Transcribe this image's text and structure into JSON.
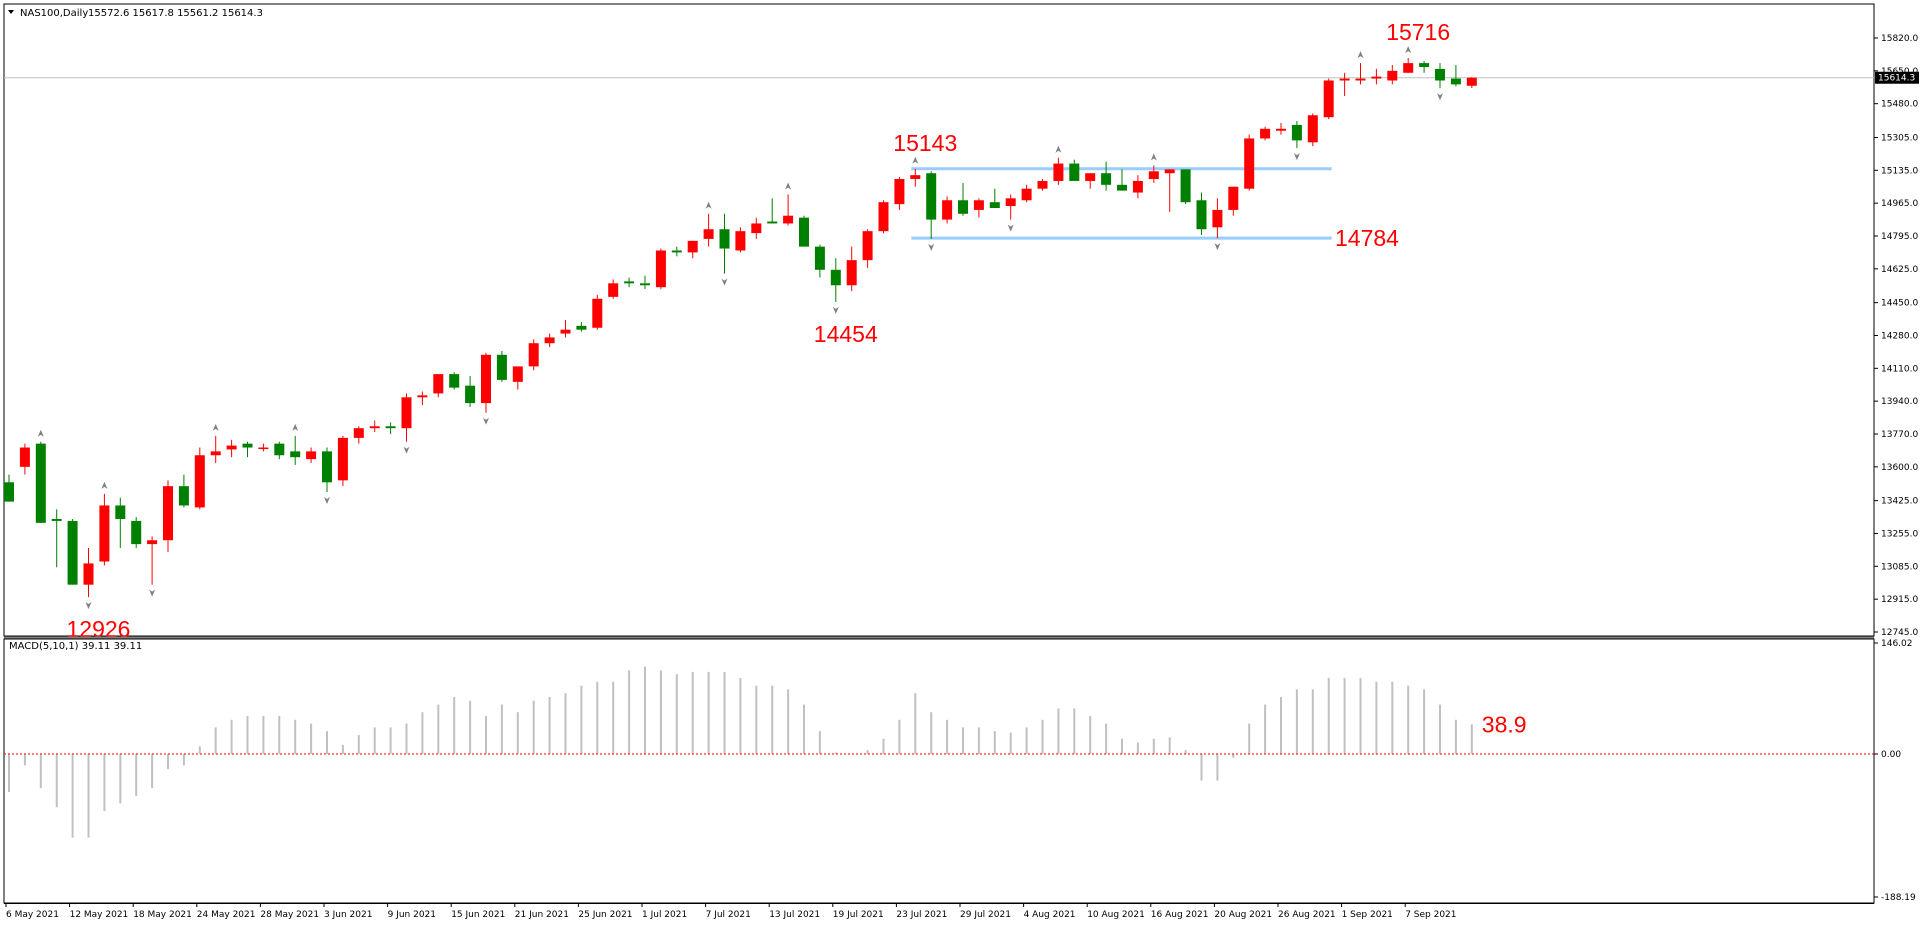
{
  "header": {
    "symbol": "NAS100,Daily",
    "ohlc": "15572.6 15617.8 15561.2 15614.3"
  },
  "colors": {
    "up": "#ff0000",
    "down": "#008000",
    "wick": "#000000",
    "support_resistance": "#99ccff",
    "annotation": "#ff0000",
    "macd_bar": "#c0c0c0",
    "signal": "#ff0000",
    "current_price_line": "#c0c0c0",
    "fractal_marker": "#808080"
  },
  "chart_data": [
    {
      "type": "candlestick",
      "title": "NAS100,Daily",
      "ylim": [
        12745.0,
        15820.0
      ],
      "y_ticks": [
        "15820.0",
        "15650.0",
        "15480.0",
        "15305.0",
        "15135.0",
        "14965.0",
        "14795.0",
        "14625.0",
        "14450.0",
        "14280.0",
        "14110.0",
        "13940.0",
        "13770.0",
        "13600.0",
        "13425.0",
        "13255.0",
        "13085.0",
        "12915.0",
        "12745.0"
      ],
      "current_price": "15614.3",
      "x_date_labels": [
        "6 May 2021",
        "12 May 2021",
        "18 May 2021",
        "24 May 2021",
        "28 May 2021",
        "3 Jun 2021",
        "9 Jun 2021",
        "15 Jun 2021",
        "21 Jun 2021",
        "25 Jun 2021",
        "1 Jul 2021",
        "7 Jul 2021",
        "13 Jul 2021",
        "19 Jul 2021",
        "23 Jul 2021",
        "29 Jul 2021",
        "4 Aug 2021",
        "10 Aug 2021",
        "16 Aug 2021",
        "20 Aug 2021",
        "26 Aug 2021",
        "1 Sep 2021",
        "7 Sep 2021"
      ],
      "candles": [
        {
          "o": 13520,
          "h": 13560,
          "l": 13420,
          "c": 13420
        },
        {
          "o": 13600,
          "h": 13720,
          "l": 13560,
          "c": 13700
        },
        {
          "o": 13720,
          "h": 13730,
          "l": 13310,
          "c": 13310
        },
        {
          "o": 13330,
          "h": 13380,
          "l": 13080,
          "c": 13320
        },
        {
          "o": 13320,
          "h": 13330,
          "l": 12990,
          "c": 12990
        },
        {
          "o": 12990,
          "h": 13180,
          "l": 12926,
          "c": 13100
        },
        {
          "o": 13110,
          "h": 13460,
          "l": 13090,
          "c": 13400
        },
        {
          "o": 13400,
          "h": 13440,
          "l": 13180,
          "c": 13330
        },
        {
          "o": 13320,
          "h": 13340,
          "l": 13180,
          "c": 13200
        },
        {
          "o": 13200,
          "h": 13240,
          "l": 12990,
          "c": 13220
        },
        {
          "o": 13220,
          "h": 13530,
          "l": 13160,
          "c": 13500
        },
        {
          "o": 13500,
          "h": 13560,
          "l": 13390,
          "c": 13400
        },
        {
          "o": 13390,
          "h": 13700,
          "l": 13380,
          "c": 13660
        },
        {
          "o": 13660,
          "h": 13760,
          "l": 13620,
          "c": 13680
        },
        {
          "o": 13690,
          "h": 13740,
          "l": 13650,
          "c": 13710
        },
        {
          "o": 13720,
          "h": 13730,
          "l": 13650,
          "c": 13700
        },
        {
          "o": 13700,
          "h": 13720,
          "l": 13680,
          "c": 13700
        },
        {
          "o": 13720,
          "h": 13730,
          "l": 13640,
          "c": 13660
        },
        {
          "o": 13680,
          "h": 13760,
          "l": 13610,
          "c": 13650
        },
        {
          "o": 13640,
          "h": 13700,
          "l": 13620,
          "c": 13680
        },
        {
          "o": 13680,
          "h": 13700,
          "l": 13470,
          "c": 13520
        },
        {
          "o": 13530,
          "h": 13760,
          "l": 13500,
          "c": 13750
        },
        {
          "o": 13750,
          "h": 13810,
          "l": 13720,
          "c": 13800
        },
        {
          "o": 13800,
          "h": 13840,
          "l": 13780,
          "c": 13810
        },
        {
          "o": 13810,
          "h": 13830,
          "l": 13770,
          "c": 13800
        },
        {
          "o": 13800,
          "h": 13980,
          "l": 13730,
          "c": 13960
        },
        {
          "o": 13960,
          "h": 13990,
          "l": 13920,
          "c": 13970
        },
        {
          "o": 13980,
          "h": 14080,
          "l": 13960,
          "c": 14080
        },
        {
          "o": 14080,
          "h": 14090,
          "l": 14000,
          "c": 14010
        },
        {
          "o": 14020,
          "h": 14070,
          "l": 13910,
          "c": 13930
        },
        {
          "o": 13930,
          "h": 14190,
          "l": 13880,
          "c": 14180
        },
        {
          "o": 14180,
          "h": 14200,
          "l": 14040,
          "c": 14050
        },
        {
          "o": 14040,
          "h": 14110,
          "l": 14000,
          "c": 14120
        },
        {
          "o": 14120,
          "h": 14260,
          "l": 14100,
          "c": 14240
        },
        {
          "o": 14240,
          "h": 14290,
          "l": 14220,
          "c": 14270
        },
        {
          "o": 14290,
          "h": 14360,
          "l": 14270,
          "c": 14310
        },
        {
          "o": 14330,
          "h": 14350,
          "l": 14300,
          "c": 14310
        },
        {
          "o": 14320,
          "h": 14490,
          "l": 14310,
          "c": 14470
        },
        {
          "o": 14480,
          "h": 14570,
          "l": 14470,
          "c": 14550
        },
        {
          "o": 14560,
          "h": 14580,
          "l": 14530,
          "c": 14550
        },
        {
          "o": 14550,
          "h": 14590,
          "l": 14520,
          "c": 14540
        },
        {
          "o": 14530,
          "h": 14730,
          "l": 14520,
          "c": 14720
        },
        {
          "o": 14720,
          "h": 14740,
          "l": 14690,
          "c": 14710
        },
        {
          "o": 14710,
          "h": 14770,
          "l": 14680,
          "c": 14770
        },
        {
          "o": 14780,
          "h": 14910,
          "l": 14740,
          "c": 14830
        },
        {
          "o": 14830,
          "h": 14910,
          "l": 14600,
          "c": 14730
        },
        {
          "o": 14720,
          "h": 14840,
          "l": 14710,
          "c": 14820
        },
        {
          "o": 14810,
          "h": 14890,
          "l": 14780,
          "c": 14860
        },
        {
          "o": 14870,
          "h": 14990,
          "l": 14860,
          "c": 14860
        },
        {
          "o": 14860,
          "h": 15010,
          "l": 14850,
          "c": 14900
        },
        {
          "o": 14890,
          "h": 14900,
          "l": 14740,
          "c": 14740
        },
        {
          "o": 14740,
          "h": 14750,
          "l": 14580,
          "c": 14620
        },
        {
          "o": 14620,
          "h": 14680,
          "l": 14454,
          "c": 14540
        },
        {
          "o": 14540,
          "h": 14740,
          "l": 14510,
          "c": 14670
        },
        {
          "o": 14670,
          "h": 14830,
          "l": 14630,
          "c": 14820
        },
        {
          "o": 14820,
          "h": 14980,
          "l": 14810,
          "c": 14970
        },
        {
          "o": 14960,
          "h": 15100,
          "l": 14930,
          "c": 15090
        },
        {
          "o": 15090,
          "h": 15143,
          "l": 15050,
          "c": 15110
        },
        {
          "o": 15120,
          "h": 15130,
          "l": 14780,
          "c": 14880
        },
        {
          "o": 14880,
          "h": 15000,
          "l": 14860,
          "c": 14980
        },
        {
          "o": 14980,
          "h": 15070,
          "l": 14900,
          "c": 14910
        },
        {
          "o": 14930,
          "h": 14990,
          "l": 14890,
          "c": 14980
        },
        {
          "o": 14970,
          "h": 15040,
          "l": 14940,
          "c": 14940
        },
        {
          "o": 14950,
          "h": 15010,
          "l": 14880,
          "c": 14990
        },
        {
          "o": 14980,
          "h": 15060,
          "l": 14970,
          "c": 15040
        },
        {
          "o": 15040,
          "h": 15090,
          "l": 15030,
          "c": 15080
        },
        {
          "o": 15080,
          "h": 15200,
          "l": 15060,
          "c": 15170
        },
        {
          "o": 15170,
          "h": 15190,
          "l": 15090,
          "c": 15080
        },
        {
          "o": 15080,
          "h": 15120,
          "l": 15040,
          "c": 15120
        },
        {
          "o": 15120,
          "h": 15180,
          "l": 15030,
          "c": 15060
        },
        {
          "o": 15060,
          "h": 15140,
          "l": 15030,
          "c": 15030
        },
        {
          "o": 15020,
          "h": 15110,
          "l": 14990,
          "c": 15080
        },
        {
          "o": 15090,
          "h": 15160,
          "l": 15070,
          "c": 15130
        },
        {
          "o": 15120,
          "h": 15140,
          "l": 14920,
          "c": 15140
        },
        {
          "o": 15140,
          "h": 15140,
          "l": 14960,
          "c": 14970
        },
        {
          "o": 14980,
          "h": 15020,
          "l": 14800,
          "c": 14830
        },
        {
          "o": 14840,
          "h": 14990,
          "l": 14784,
          "c": 14930
        },
        {
          "o": 14930,
          "h": 15050,
          "l": 14900,
          "c": 15050
        },
        {
          "o": 15040,
          "h": 15320,
          "l": 15030,
          "c": 15300
        },
        {
          "o": 15300,
          "h": 15360,
          "l": 15290,
          "c": 15350
        },
        {
          "o": 15340,
          "h": 15380,
          "l": 15320,
          "c": 15350
        },
        {
          "o": 15370,
          "h": 15390,
          "l": 15250,
          "c": 15290
        },
        {
          "o": 15280,
          "h": 15430,
          "l": 15260,
          "c": 15420
        },
        {
          "o": 15410,
          "h": 15610,
          "l": 15400,
          "c": 15600
        },
        {
          "o": 15600,
          "h": 15640,
          "l": 15520,
          "c": 15610
        },
        {
          "o": 15600,
          "h": 15690,
          "l": 15580,
          "c": 15610
        },
        {
          "o": 15610,
          "h": 15660,
          "l": 15580,
          "c": 15620
        },
        {
          "o": 15600,
          "h": 15680,
          "l": 15580,
          "c": 15650
        },
        {
          "o": 15640,
          "h": 15716,
          "l": 15640,
          "c": 15690
        },
        {
          "o": 15690,
          "h": 15700,
          "l": 15640,
          "c": 15670
        },
        {
          "o": 15660,
          "h": 15690,
          "l": 15560,
          "c": 15600
        },
        {
          "o": 15610,
          "h": 15680,
          "l": 15570,
          "c": 15580
        },
        {
          "o": 15572.6,
          "h": 15617.8,
          "l": 15561.2,
          "c": 15614.3
        }
      ],
      "support": 14784,
      "resistance": 15143,
      "annotations": [
        "12926",
        "14454",
        "15143",
        "14784",
        "15716"
      ]
    },
    {
      "type": "bar",
      "title": "MACD(5,10,1) 39.11 39.11",
      "ylim": [
        -188.19,
        146.02
      ],
      "y_ticks": [
        "146.02",
        "0.00",
        "-188.19"
      ],
      "signal_line": 0,
      "annotation": "38.9",
      "values": [
        -50,
        -15,
        -45,
        -70,
        -110,
        -110,
        -75,
        -65,
        -55,
        -45,
        -20,
        -15,
        10,
        35,
        45,
        50,
        50,
        50,
        45,
        40,
        30,
        12,
        25,
        35,
        35,
        40,
        55,
        65,
        75,
        70,
        50,
        65,
        55,
        70,
        75,
        80,
        90,
        95,
        95,
        110,
        115,
        110,
        105,
        108,
        108,
        108,
        100,
        90,
        90,
        85,
        65,
        30,
        2,
        0,
        5,
        20,
        45,
        80,
        55,
        45,
        35,
        35,
        30,
        28,
        35,
        45,
        60,
        60,
        50,
        40,
        20,
        15,
        20,
        22,
        5,
        -35,
        -35,
        -5,
        40,
        65,
        75,
        85,
        85,
        100,
        100,
        100,
        95,
        95,
        90,
        85,
        65,
        45,
        39
      ]
    }
  ]
}
